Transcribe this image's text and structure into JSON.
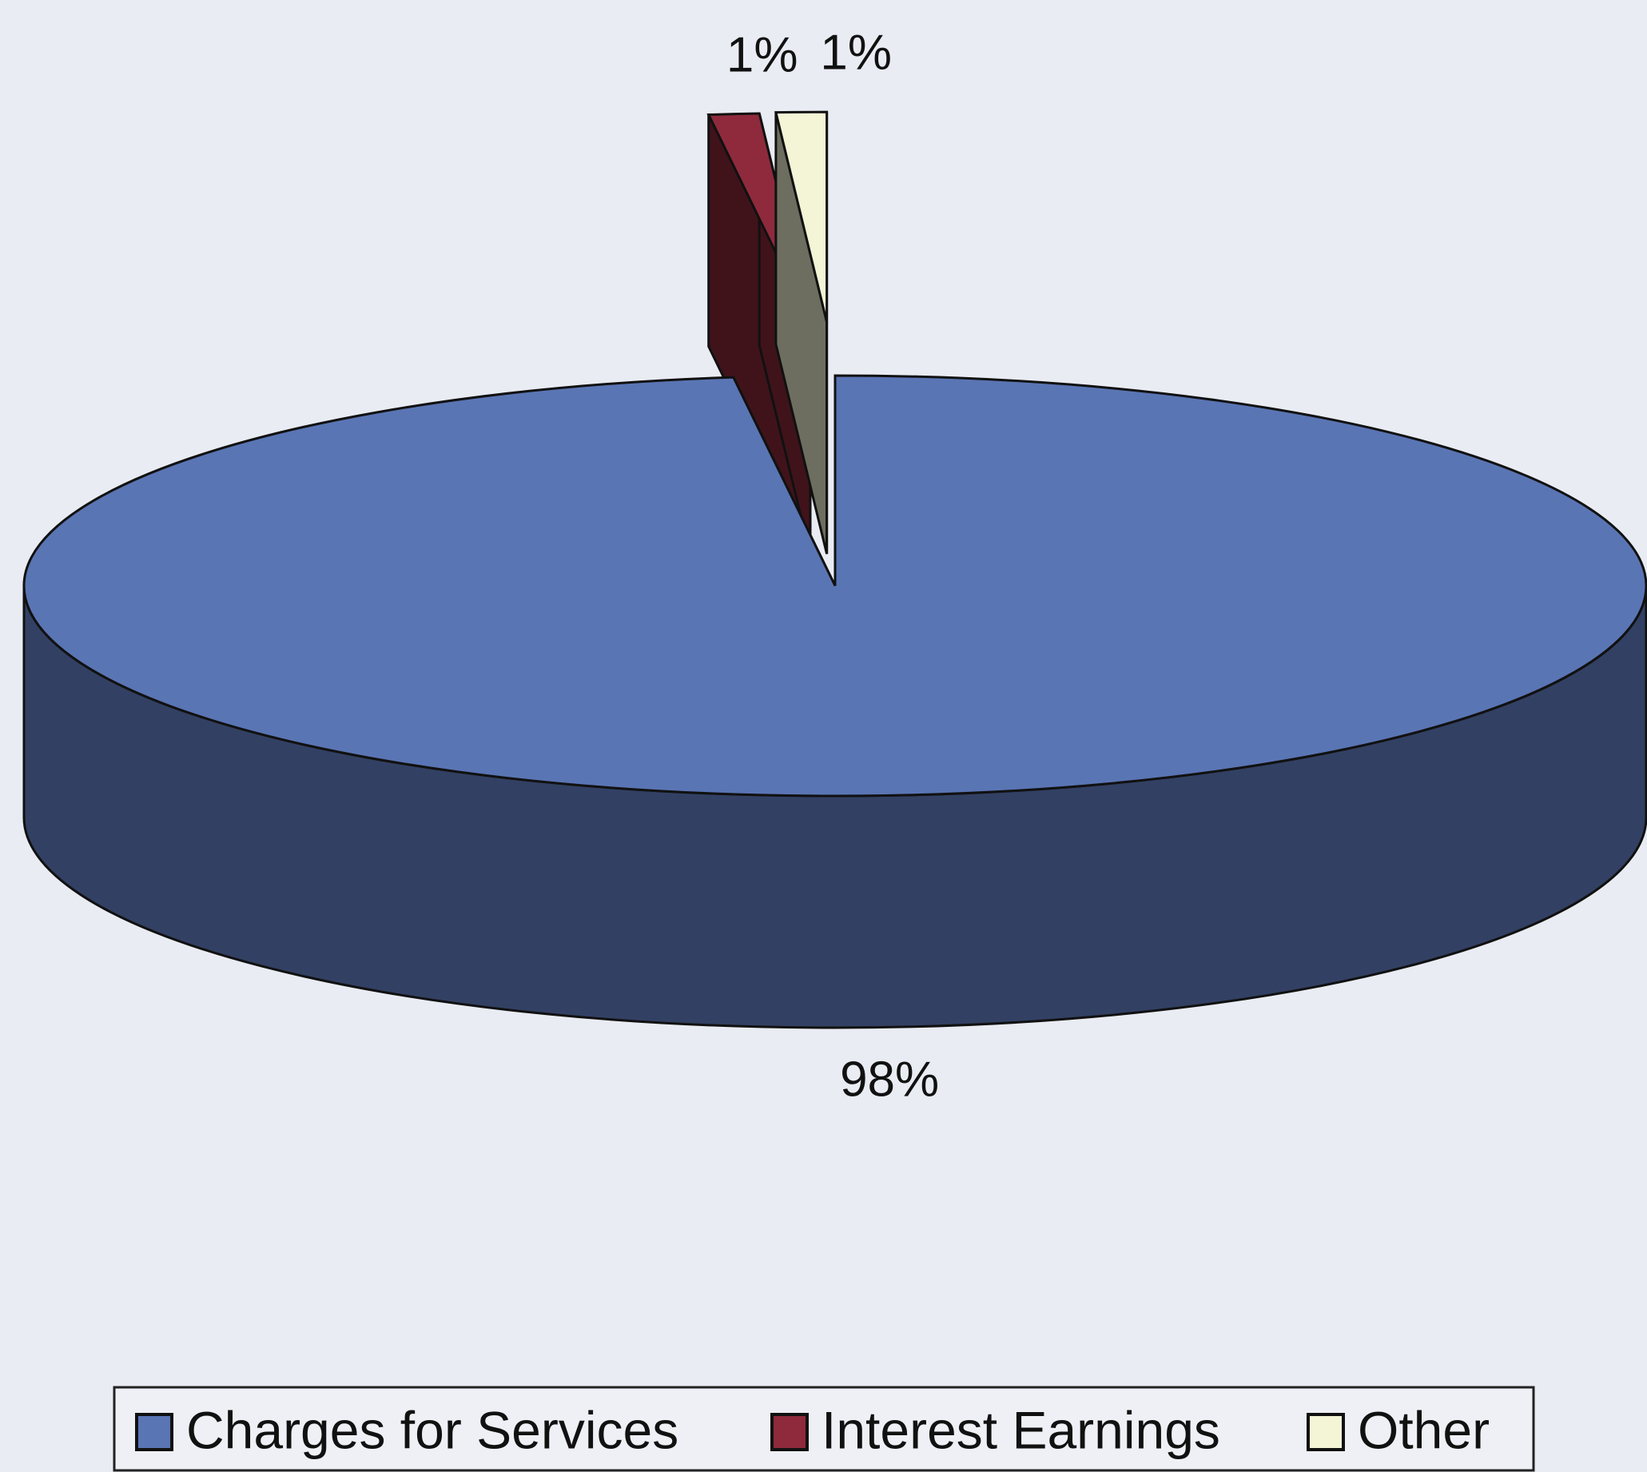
{
  "chart_data": {
    "type": "pie",
    "categories": [
      "Charges for Services",
      "Interest Earnings",
      "Other"
    ],
    "values": [
      98,
      1,
      1
    ],
    "value_labels": [
      "98%",
      "1%",
      "1%"
    ],
    "colors": [
      "#5a75b4",
      "#8e2a3c",
      "#f4f4d6"
    ],
    "legend": "bottom"
  }
}
